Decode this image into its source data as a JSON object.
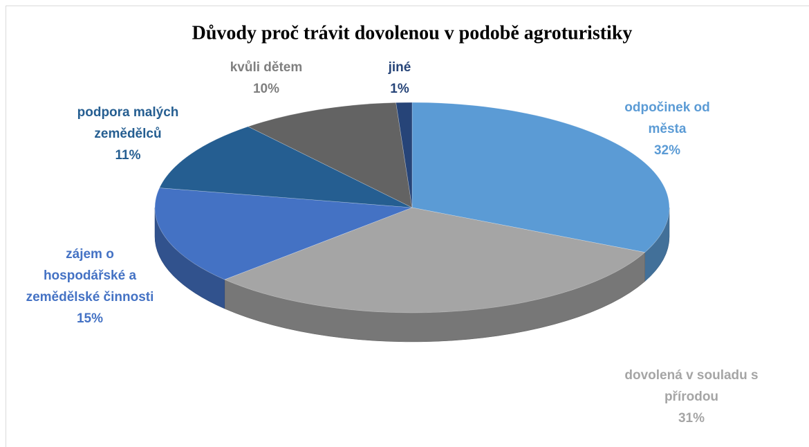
{
  "chart_data": {
    "type": "pie",
    "title": "Důvody proč trávit dovolenou v podobě agroturistiky",
    "categories": [
      "odpočinek od města",
      "dovolená v souladu s přírodou",
      "zájem o hospodářské a zemědělské činnosti",
      "podpora malých zemědělců",
      "kvůli dětem",
      "jiné"
    ],
    "values": [
      32,
      31,
      15,
      11,
      10,
      1
    ],
    "value_labels": [
      "32%",
      "31%",
      "15%",
      "11%",
      "10%",
      "1%"
    ],
    "colors": [
      "#5b9bd5",
      "#a5a5a5",
      "#4472c4",
      "#255e91",
      "#636363",
      "#264478"
    ]
  }
}
